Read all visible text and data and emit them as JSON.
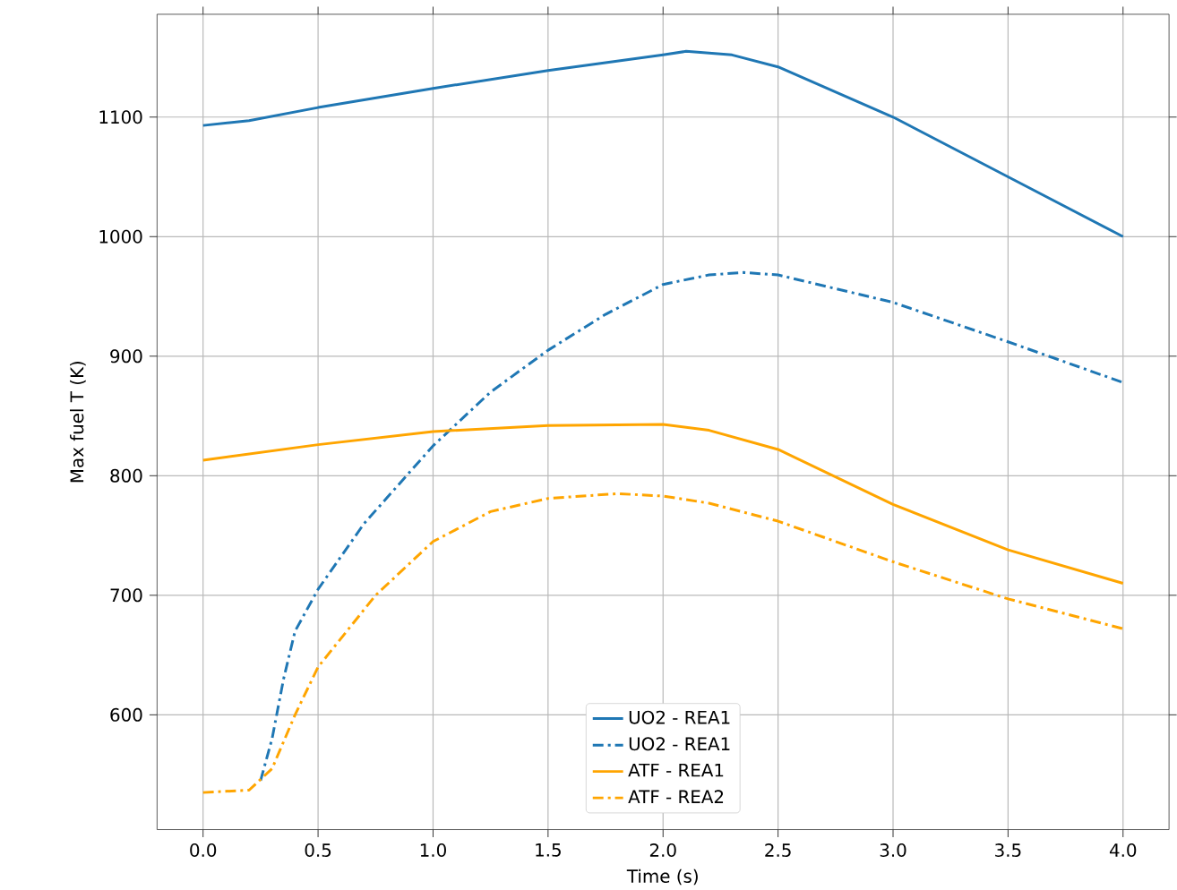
{
  "chart_data": {
    "type": "line",
    "xlabel": "Time (s)",
    "ylabel": "Max fuel T (K)",
    "xlim": [
      -0.2,
      4.2
    ],
    "ylim": [
      504,
      1186
    ],
    "xticks": [
      {
        "value": 0,
        "label": "0.0"
      },
      {
        "value": 0.5,
        "label": "0.5"
      },
      {
        "value": 1,
        "label": "1.0"
      },
      {
        "value": 1.5,
        "label": "1.5"
      },
      {
        "value": 2,
        "label": "2.0"
      },
      {
        "value": 2.5,
        "label": "2.5"
      },
      {
        "value": 3,
        "label": "3.0"
      },
      {
        "value": 3.5,
        "label": "3.5"
      },
      {
        "value": 4,
        "label": "4.0"
      }
    ],
    "yticks": [
      600,
      700,
      800,
      900,
      1000,
      1100
    ],
    "grid": true,
    "legend": "bottom",
    "marker": "none",
    "series": [
      {
        "name": "UO2 - REA1",
        "color": "#1f77b4",
        "line_style": "solid",
        "x": [
          0,
          0.2,
          0.5,
          1.0,
          1.5,
          2.0,
          2.1,
          2.3,
          2.5,
          3.0,
          3.5,
          4.0
        ],
        "values": [
          1093,
          1097,
          1108,
          1124,
          1139,
          1152,
          1155,
          1152,
          1142,
          1100,
          1050,
          1000
        ]
      },
      {
        "name": "UO2 - REA1",
        "color": "#1f77b4",
        "line_style": "dashdot",
        "x": [
          0.25,
          0.3,
          0.35,
          0.4,
          0.5,
          0.7,
          1.0,
          1.25,
          1.5,
          1.75,
          2.0,
          2.2,
          2.35,
          2.5,
          3.0,
          3.5,
          4.0
        ],
        "values": [
          545,
          580,
          630,
          670,
          705,
          760,
          825,
          870,
          905,
          935,
          960,
          968,
          970,
          968,
          945,
          912,
          878
        ]
      },
      {
        "name": "ATF - REA1",
        "color": "#ffa500",
        "line_style": "solid",
        "x": [
          0,
          0.5,
          1.0,
          1.5,
          2.0,
          2.2,
          2.5,
          3.0,
          3.5,
          4.0
        ],
        "values": [
          813,
          826,
          837,
          842,
          843,
          838,
          822,
          776,
          738,
          710
        ]
      },
      {
        "name": "ATF - REA2",
        "color": "#ffa500",
        "line_style": "dashdot",
        "x": [
          0,
          0.2,
          0.3,
          0.4,
          0.5,
          0.75,
          1.0,
          1.25,
          1.5,
          1.8,
          2.0,
          2.2,
          2.5,
          3.0,
          3.5,
          4.0
        ],
        "values": [
          535,
          537,
          555,
          600,
          640,
          700,
          745,
          770,
          781,
          785,
          783,
          777,
          762,
          728,
          697,
          672
        ]
      }
    ]
  }
}
